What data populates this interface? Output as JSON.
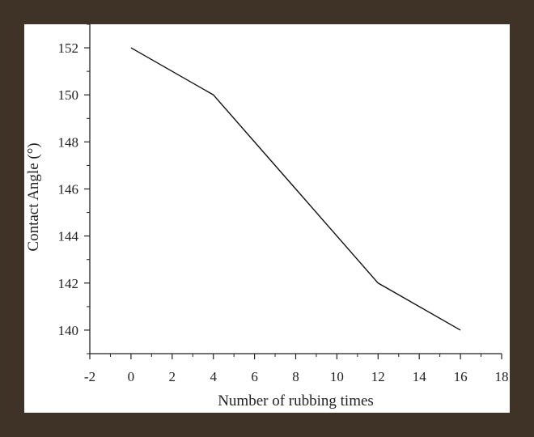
{
  "colors": {
    "frame": "#3f3328",
    "panel": "#ffffff",
    "line": "#111111",
    "axis": "#222222"
  },
  "chart_data": {
    "type": "line",
    "title": "",
    "xlabel": "Number of rubbing times",
    "ylabel": "Contact Angle (°)",
    "x": [
      0,
      4,
      8,
      12,
      16
    ],
    "series": [
      {
        "values": [
          152,
          150,
          146,
          142,
          140
        ]
      }
    ],
    "xlim": [
      -2,
      18
    ],
    "ylim": [
      139,
      153
    ],
    "x_ticks": [
      "-2",
      "0",
      "2",
      "4",
      "6",
      "8",
      "10",
      "12",
      "14",
      "16",
      "18"
    ],
    "y_ticks": [
      "140",
      "142",
      "144",
      "146",
      "148",
      "150",
      "152"
    ],
    "grid": false,
    "legend": "none"
  }
}
